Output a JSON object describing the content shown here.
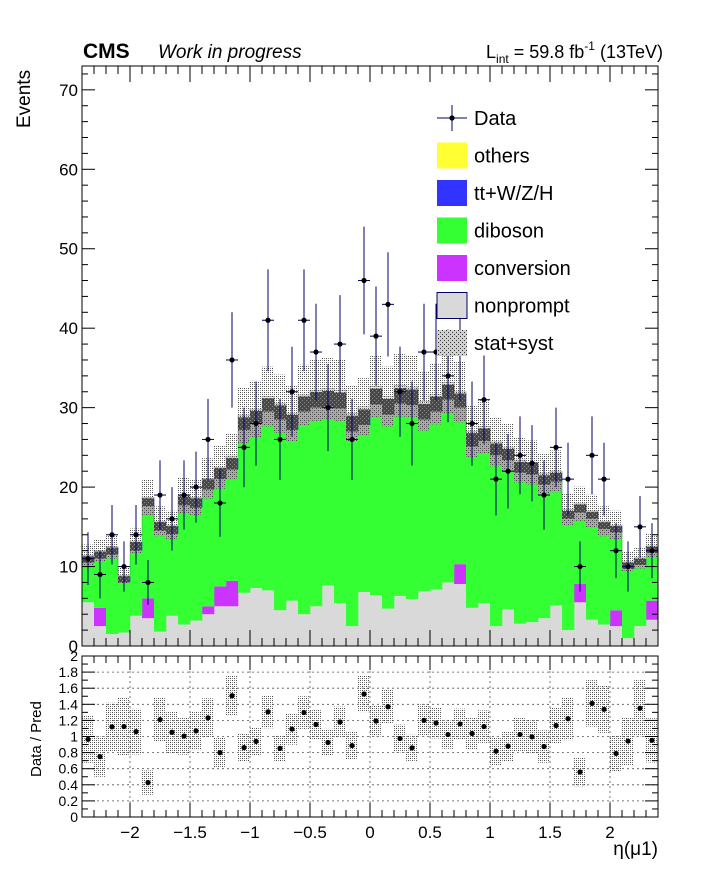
{
  "header": {
    "experiment": "CMS",
    "status": "Work in progress",
    "lumi_prefix": "L",
    "lumi_sub": "int",
    "lumi_value": " = 59.8 fb",
    "lumi_sup": "-1",
    "energy": " (13TeV)"
  },
  "colors": {
    "others": "#ffff33",
    "ttV": "#3333ff",
    "diboson": "#33ff33",
    "conversion": "#cc33ff",
    "nonprompt": "#d9d9d9",
    "data": "#000000",
    "error_bar": "#000066",
    "band": "#9a9a9a"
  },
  "chart_data": [
    {
      "type": "bar",
      "stacked": true,
      "ylabel": "Events",
      "xlabel": "",
      "xlim": [
        -2.4,
        2.4
      ],
      "ylim": [
        0,
        73
      ],
      "yticks": [
        0,
        10,
        20,
        30,
        40,
        50,
        60,
        70
      ],
      "bin_width": 0.1,
      "x": [
        -2.35,
        -2.25,
        -2.15,
        -2.05,
        -1.95,
        -1.85,
        -1.75,
        -1.65,
        -1.55,
        -1.45,
        -1.35,
        -1.25,
        -1.15,
        -1.05,
        -0.95,
        -0.85,
        -0.75,
        -0.65,
        -0.55,
        -0.45,
        -0.35,
        -0.25,
        -0.15,
        -0.05,
        0.05,
        0.15,
        0.25,
        0.35,
        0.45,
        0.55,
        0.65,
        0.75,
        0.85,
        0.95,
        1.05,
        1.15,
        1.25,
        1.35,
        1.45,
        1.55,
        1.65,
        1.75,
        1.85,
        1.95,
        2.05,
        2.15,
        2.25,
        2.35
      ],
      "series": [
        {
          "name": "nonprompt",
          "values": [
            5.5,
            2.5,
            1.5,
            1.7,
            3.8,
            3.5,
            1.8,
            3.8,
            2.7,
            3.2,
            4.0,
            5.0,
            5.0,
            6.7,
            7.3,
            7.0,
            4.5,
            5.7,
            4.0,
            5.0,
            7.6,
            5.4,
            2.5,
            6.8,
            6.4,
            4.7,
            6.3,
            5.9,
            6.9,
            7.1,
            8.0,
            7.8,
            4.8,
            5.4,
            2.5,
            4.6,
            2.8,
            3.0,
            3.5,
            5.1,
            2.0,
            5.5,
            3.3,
            2.7,
            2.5,
            1.0,
            2.5,
            3.3
          ]
        },
        {
          "name": "conversion",
          "values": [
            0,
            2.3,
            0,
            0,
            0,
            2.5,
            0,
            0,
            0,
            0,
            1.0,
            2.5,
            3.2,
            0,
            0,
            0,
            0,
            0,
            0,
            0,
            0,
            0,
            0,
            0,
            0,
            0,
            0,
            0,
            0,
            0,
            0,
            2.5,
            0,
            0,
            0,
            0,
            0,
            0,
            0,
            0,
            0,
            2.3,
            0,
            0,
            2.0,
            0,
            0,
            2.4
          ]
        },
        {
          "name": "diboson",
          "values": [
            5.0,
            6.2,
            10.0,
            6.3,
            8.2,
            11.6,
            12.7,
            10.3,
            15.0,
            14.2,
            14.7,
            13.5,
            14.0,
            20.5,
            20.7,
            22.5,
            24.0,
            21.5,
            25.5,
            25.0,
            22.5,
            24.5,
            24.5,
            21.0,
            24.0,
            24.4,
            24.2,
            24.4,
            21.6,
            22.4,
            23.0,
            19.7,
            20.3,
            20.4,
            21.5,
            18.8,
            19.0,
            18.6,
            16.8,
            15.6,
            14.0,
            9.0,
            12.7,
            12.0,
            9.8,
            8.7,
            7.7,
            6.0
          ]
        },
        {
          "name": "tt+W/Z/H",
          "values": [
            0.8,
            0.9,
            0.9,
            0.8,
            1.1,
            1.0,
            1.1,
            1.0,
            1.1,
            1.2,
            1.3,
            1.4,
            1.5,
            1.6,
            1.6,
            1.7,
            1.8,
            1.9,
            1.9,
            2.0,
            2.0,
            2.0,
            2.0,
            2.0,
            2.0,
            2.0,
            2.0,
            2.0,
            2.0,
            1.9,
            1.9,
            1.8,
            1.7,
            1.6,
            1.5,
            1.4,
            1.4,
            1.3,
            1.2,
            1.1,
            1.0,
            1.0,
            0.9,
            0.9,
            0.8,
            0.8,
            0.8,
            0.8
          ]
        },
        {
          "name": "others",
          "values": [
            0.1,
            0.1,
            0.1,
            0.1,
            0.1,
            0.1,
            0.1,
            0.1,
            0.1,
            0.1,
            0.1,
            0.1,
            0.2,
            0.2,
            0.2,
            0.2,
            0.2,
            0.2,
            0.2,
            0.2,
            0.3,
            0.3,
            0.3,
            0.3,
            0.3,
            0.3,
            0.3,
            0.3,
            0.3,
            0.3,
            0.3,
            0.2,
            0.2,
            0.2,
            0.2,
            0.2,
            0.2,
            0.2,
            0.2,
            0.2,
            0.2,
            0.1,
            0.1,
            0.1,
            0.1,
            0.1,
            0.1,
            0.1
          ]
        }
      ],
      "stat_syst_band": {
        "name": "stat+syst",
        "rel_half_width": 0.12
      },
      "data": {
        "name": "Data",
        "values": [
          11,
          9,
          14,
          10,
          14,
          8,
          19,
          16,
          19,
          20,
          26,
          18,
          36,
          25,
          28,
          41,
          26,
          32,
          41,
          37,
          30,
          38,
          26,
          46,
          39,
          43,
          32,
          28,
          37,
          37,
          34,
          37,
          28,
          31,
          21,
          22,
          24,
          23,
          19,
          25,
          21,
          10,
          24,
          21,
          12,
          10,
          15,
          12
        ]
      },
      "legend": {
        "placement": "top-right",
        "entries": [
          "Data",
          "others",
          "tt+W/Z/H",
          "diboson",
          "conversion",
          "nonprompt",
          "stat+syst"
        ]
      }
    },
    {
      "type": "scatter",
      "ylabel": "Data / Pred",
      "xlabel": "η(μ1)",
      "xlim": [
        -2.4,
        2.4
      ],
      "ylim": [
        0,
        2
      ],
      "yticks": [
        0,
        0.2,
        0.4,
        0.6,
        0.8,
        1,
        1.2,
        1.4,
        1.6,
        1.8,
        2
      ],
      "xticks": [
        -2,
        -1.5,
        -1,
        -0.5,
        0,
        0.5,
        1,
        1.5,
        2
      ],
      "xtick_labels": [
        "−2",
        "−1.5",
        "−1",
        "−0.5",
        "0",
        "0.5",
        "1",
        "1.5",
        "2"
      ],
      "grid": true,
      "reference_line": 1
    }
  ]
}
